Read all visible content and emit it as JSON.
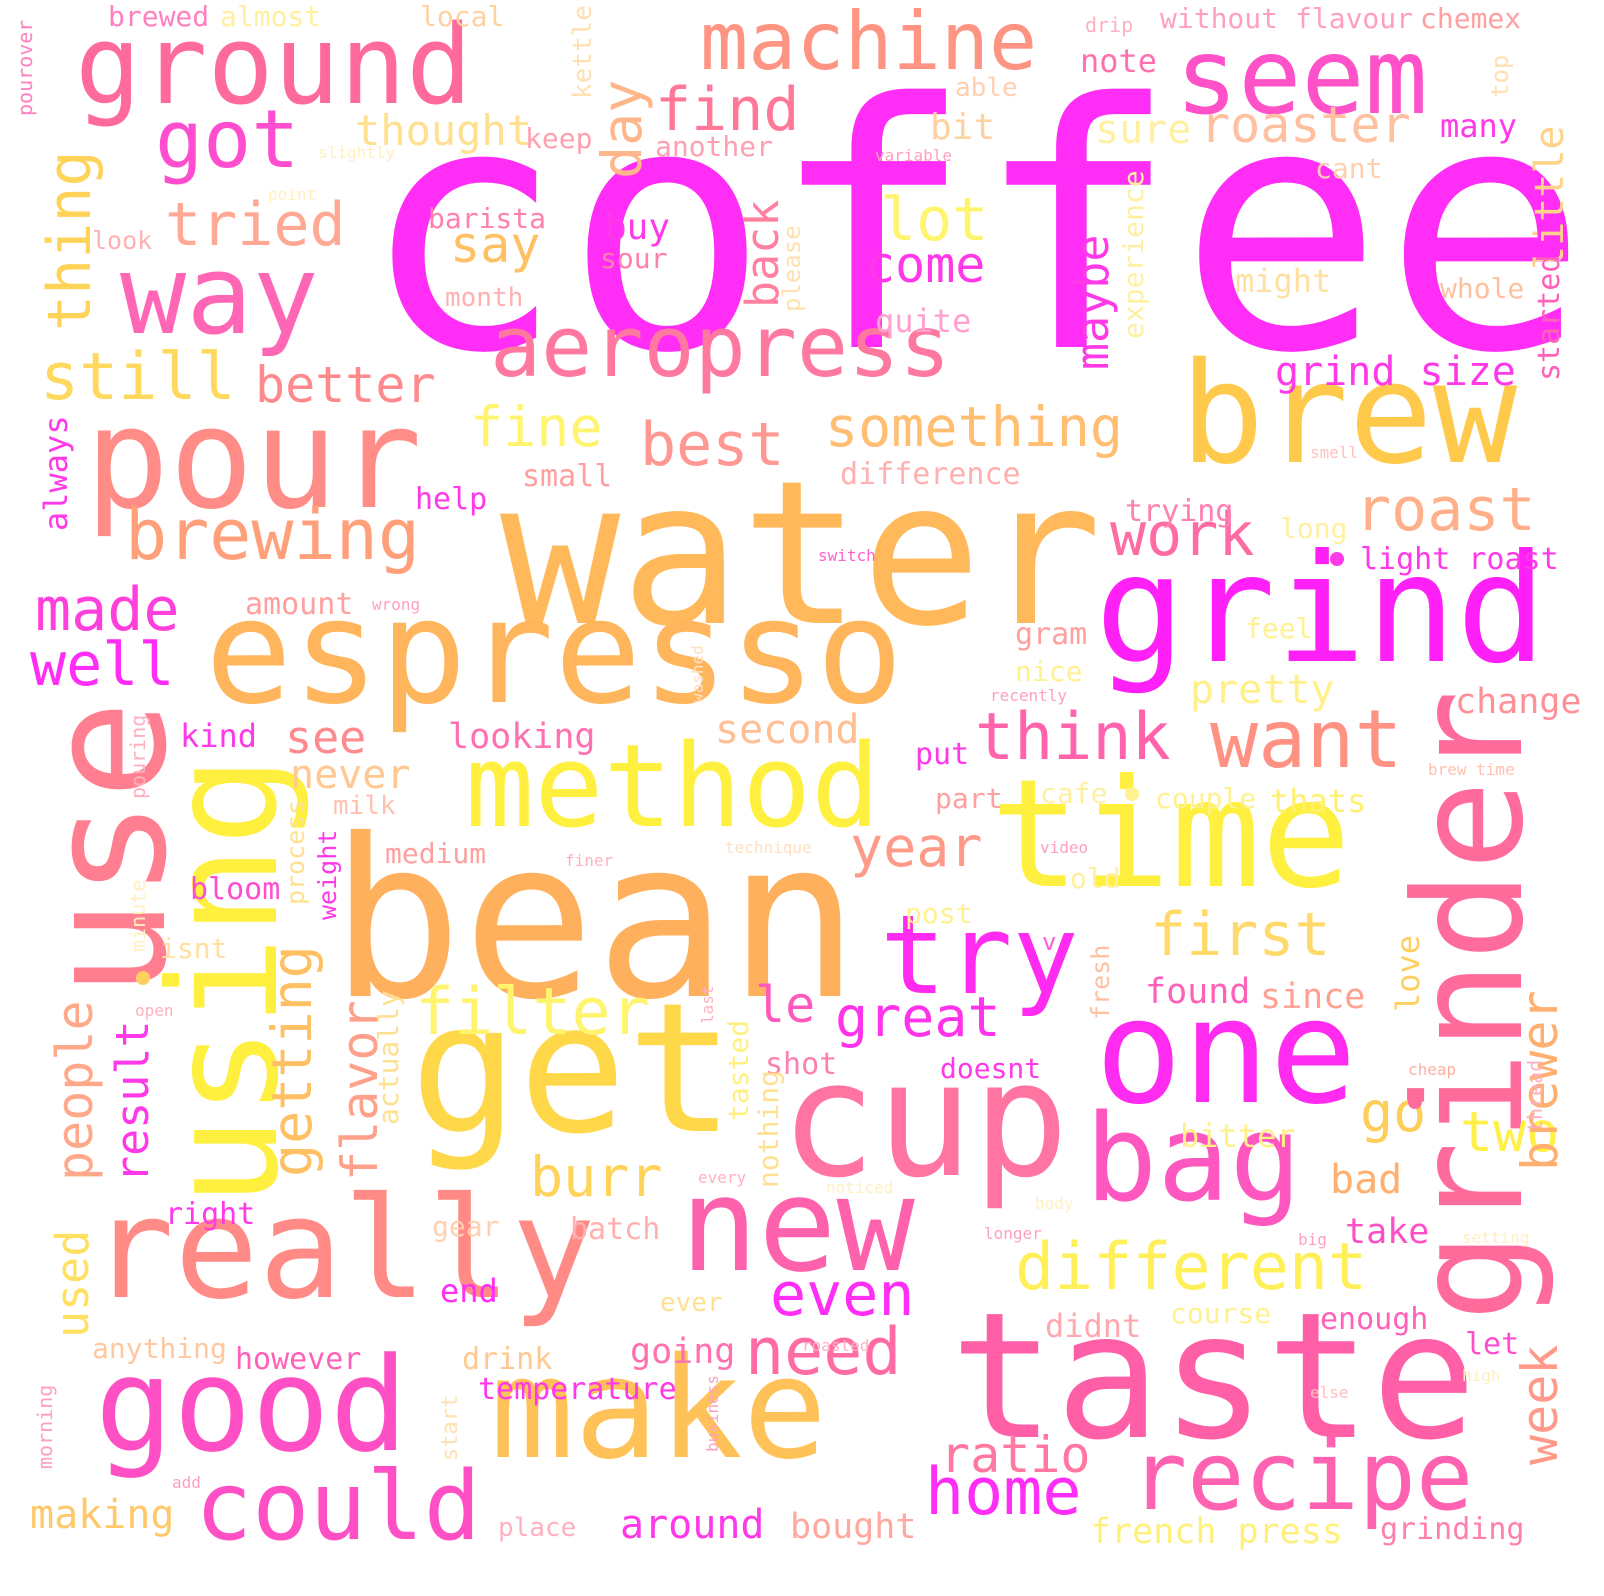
{
  "palette": {
    "magenta": "#ff2df6",
    "pink": "#ff4fb2",
    "rose": "#ff6f97",
    "salmon": "#ff8f82",
    "orange": "#ffaf63",
    "gold": "#ffc74f",
    "yellow": "#fff23a"
  },
  "words": [
    {
      "text": "coffee",
      "color": "#ff2df6"
    },
    {
      "text": "water",
      "color": "#ffb95a"
    },
    {
      "text": "bean",
      "color": "#ffb05d"
    },
    {
      "text": "espresso",
      "color": "#ffb55c"
    },
    {
      "text": "taste",
      "color": "#ff5fa7"
    },
    {
      "text": "use",
      "color": "#ff7f90"
    },
    {
      "text": "time",
      "color": "#fff03f"
    },
    {
      "text": "brew",
      "color": "#ffca4c"
    },
    {
      "text": "grind",
      "color": "#ff1ff7"
    },
    {
      "text": "get",
      "color": "#ffd84a"
    },
    {
      "text": "cup",
      "color": "#ff74a0"
    },
    {
      "text": "one",
      "color": "#ff2bf0"
    },
    {
      "text": "grinder",
      "color": "#ff6c9c"
    },
    {
      "text": "really",
      "color": "#ff8a86"
    },
    {
      "text": "using",
      "color": "#fff040"
    },
    {
      "text": "pour",
      "color": "#ff8c86"
    },
    {
      "text": "make",
      "color": "#ffc258"
    },
    {
      "text": "ground",
      "color": "#ff6a9e"
    },
    {
      "text": "seem",
      "color": "#ff52c8"
    },
    {
      "text": "machine",
      "color": "#ff9483"
    },
    {
      "text": "good",
      "color": "#ff4fc4"
    },
    {
      "text": "aeropress",
      "color": "#ff78a0"
    },
    {
      "text": "way",
      "color": "#ff66b6"
    },
    {
      "text": "new",
      "color": "#ff62ac"
    },
    {
      "text": "method",
      "color": "#fff040"
    },
    {
      "text": "bag",
      "color": "#ff57c0"
    },
    {
      "text": "recipe",
      "color": "#ff62b0"
    },
    {
      "text": "could",
      "color": "#ff4fc4"
    },
    {
      "text": "try",
      "color": "#ff2bf0"
    },
    {
      "text": "want",
      "color": "#ff9283"
    },
    {
      "text": "brewing",
      "color": "#ffa07a"
    },
    {
      "text": "think",
      "color": "#ff63ac"
    },
    {
      "text": "got",
      "color": "#ff4dd0"
    },
    {
      "text": "find",
      "color": "#ff7898"
    },
    {
      "text": "roaster",
      "color": "#ffc0a0"
    },
    {
      "text": "different",
      "color": "#fff05a"
    },
    {
      "text": "filter",
      "color": "#fff46e"
    },
    {
      "text": "first",
      "color": "#ffd96a"
    },
    {
      "text": "home",
      "color": "#ff2df6"
    },
    {
      "text": "need",
      "color": "#ff6ca4"
    },
    {
      "text": "ratio",
      "color": "#ff78a0"
    },
    {
      "text": "something",
      "color": "#ffbe72"
    },
    {
      "text": "roast",
      "color": "#ffb08a"
    },
    {
      "text": "year",
      "color": "#ff9a88"
    },
    {
      "text": "made",
      "color": "#ff3fdc"
    },
    {
      "text": "well",
      "color": "#ff2df6"
    },
    {
      "text": "day",
      "color": "#ffb68a"
    },
    {
      "text": "still",
      "color": "#ffd860"
    },
    {
      "text": "thing",
      "color": "#ffd258"
    },
    {
      "text": "tried",
      "color": "#ffa893"
    },
    {
      "text": "best",
      "color": "#ff9893"
    },
    {
      "text": "fine",
      "color": "#fff46e"
    },
    {
      "text": "better",
      "color": "#ff8a8e"
    },
    {
      "text": "lot",
      "color": "#fff46e"
    },
    {
      "text": "say",
      "color": "#ffc064"
    },
    {
      "text": "come",
      "color": "#ff38e8"
    },
    {
      "text": "work",
      "color": "#ff6ca4"
    },
    {
      "text": "great",
      "color": "#ff33ec"
    },
    {
      "text": "le",
      "color": "#ff58bc"
    },
    {
      "text": "even",
      "color": "#ff2df6"
    },
    {
      "text": "burr",
      "color": "#ffd258"
    },
    {
      "text": "go",
      "color": "#ffce58"
    },
    {
      "text": "two",
      "color": "#fff046"
    },
    {
      "text": "bad",
      "color": "#ffb070"
    },
    {
      "text": "take",
      "color": "#ff4fc4"
    },
    {
      "text": "week",
      "color": "#ff9a8a"
    },
    {
      "text": "brewer",
      "color": "#ffb070"
    },
    {
      "text": "back",
      "color": "#ff80a0"
    },
    {
      "text": "maybe",
      "color": "#ff38e8"
    },
    {
      "text": "little",
      "color": "#ffd28a"
    },
    {
      "text": "see",
      "color": "#ff8a8e"
    },
    {
      "text": "pretty",
      "color": "#fff08a"
    },
    {
      "text": "second",
      "color": "#ffbe94"
    },
    {
      "text": "never",
      "color": "#ffc890"
    },
    {
      "text": "getting",
      "color": "#ffc064"
    },
    {
      "text": "flavor",
      "color": "#ffa08a"
    },
    {
      "text": "people",
      "color": "#ffa88a"
    },
    {
      "text": "result",
      "color": "#ff38e8"
    },
    {
      "text": "used",
      "color": "#ffe060"
    },
    {
      "text": "grind size",
      "color": "#ff38e8"
    },
    {
      "text": "light roast",
      "color": "#ff38e8"
    },
    {
      "text": "change",
      "color": "#ff9098"
    },
    {
      "text": "french press",
      "color": "#fff07a"
    },
    {
      "text": "grinding",
      "color": "#ff80b0"
    },
    {
      "text": "making",
      "color": "#ffc86a"
    },
    {
      "text": "around",
      "color": "#ff38e8"
    },
    {
      "text": "bought",
      "color": "#ffa8a0"
    },
    {
      "text": "temperature",
      "color": "#ff38e8"
    },
    {
      "text": "drink",
      "color": "#ffc890"
    },
    {
      "text": "however",
      "color": "#ff60b8"
    },
    {
      "text": "going",
      "color": "#ff70b0"
    },
    {
      "text": "anything",
      "color": "#ffc8a0"
    },
    {
      "text": "didnt",
      "color": "#ffa8b0"
    },
    {
      "text": "course",
      "color": "#fff090"
    },
    {
      "text": "enough",
      "color": "#ff60b8"
    },
    {
      "text": "let",
      "color": "#ff4dd0"
    },
    {
      "text": "bitter",
      "color": "#fff08a"
    },
    {
      "text": "found",
      "color": "#ff60b8"
    },
    {
      "text": "since",
      "color": "#ffa090"
    },
    {
      "text": "love",
      "color": "#ffd060"
    },
    {
      "text": "doesnt",
      "color": "#ff38e8"
    },
    {
      "text": "shot",
      "color": "#ff80b0"
    },
    {
      "text": "tasted",
      "color": "#fff080"
    },
    {
      "text": "nothing",
      "color": "#ffe090"
    },
    {
      "text": "actually",
      "color": "#ffe090"
    },
    {
      "text": "right",
      "color": "#ff38e8"
    },
    {
      "text": "gear",
      "color": "#ffd0b0"
    },
    {
      "text": "batch",
      "color": "#ffb0b0"
    },
    {
      "text": "end",
      "color": "#ff2df6"
    },
    {
      "text": "ever",
      "color": "#ffe090"
    },
    {
      "text": "post",
      "color": "#fff090"
    },
    {
      "text": "isnt",
      "color": "#ffe0a0"
    },
    {
      "text": "bloom",
      "color": "#ff4dd0"
    },
    {
      "text": "process",
      "color": "#ffe090"
    },
    {
      "text": "weight",
      "color": "#ff38e8"
    },
    {
      "text": "medium",
      "color": "#ffa0a0"
    },
    {
      "text": "milk",
      "color": "#ffc0b0"
    },
    {
      "text": "part",
      "color": "#ffa0a0"
    },
    {
      "text": "put",
      "color": "#ff38e8"
    },
    {
      "text": "cafe",
      "color": "#fff0a0"
    },
    {
      "text": "couple",
      "color": "#fff090"
    },
    {
      "text": "thats",
      "color": "#fff070"
    },
    {
      "text": "old",
      "color": "#fff0a0"
    },
    {
      "text": "fresh",
      "color": "#ffc0a0"
    },
    {
      "text": "kind",
      "color": "#ff38e8"
    },
    {
      "text": "looking",
      "color": "#ff70b0"
    },
    {
      "text": "amount",
      "color": "#ffa0a0"
    },
    {
      "text": "help",
      "color": "#ff38e8"
    },
    {
      "text": "small",
      "color": "#ffa0a0"
    },
    {
      "text": "difference",
      "color": "#ffb0b0"
    },
    {
      "text": "trying",
      "color": "#ff80b0"
    },
    {
      "text": "long",
      "color": "#fff0a0"
    },
    {
      "text": "gram",
      "color": "#ffa0a0"
    },
    {
      "text": "nice",
      "color": "#fff090"
    },
    {
      "text": "feel",
      "color": "#fff090"
    },
    {
      "text": "quite",
      "color": "#ffa0d0"
    },
    {
      "text": "month",
      "color": "#ffb0b0"
    },
    {
      "text": "please",
      "color": "#ffe0b0"
    },
    {
      "text": "experience",
      "color": "#fff0a0"
    },
    {
      "text": "might",
      "color": "#ffe0a0"
    },
    {
      "text": "whole",
      "color": "#ffc0a0"
    },
    {
      "text": "started",
      "color": "#ff60b8"
    },
    {
      "text": "buy",
      "color": "#ff38e8"
    },
    {
      "text": "sour",
      "color": "#ff80b0"
    },
    {
      "text": "barista",
      "color": "#ff80b0"
    },
    {
      "text": "look",
      "color": "#ffb0b0"
    },
    {
      "text": "thought",
      "color": "#ffe090"
    },
    {
      "text": "keep",
      "color": "#ffa0b0"
    },
    {
      "text": "another",
      "color": "#ffa0b0"
    },
    {
      "text": "bit",
      "color": "#ffd0a0"
    },
    {
      "text": "able",
      "color": "#ffd0b0"
    },
    {
      "text": "note",
      "color": "#ff70b0"
    },
    {
      "text": "sure",
      "color": "#fff0a0"
    },
    {
      "text": "many",
      "color": "#ff38e8"
    },
    {
      "text": "cant",
      "color": "#ffd0b0"
    },
    {
      "text": "top",
      "color": "#ffe0b0"
    },
    {
      "text": "kettle",
      "color": "#ffe0b0"
    },
    {
      "text": "local",
      "color": "#ffd0a0"
    },
    {
      "text": "almost",
      "color": "#fff0a0"
    },
    {
      "text": "brewed",
      "color": "#ff80c0"
    },
    {
      "text": "drip",
      "color": "#ffb0c0"
    },
    {
      "text": "without",
      "color": "#ffa0c0"
    },
    {
      "text": "flavour",
      "color": "#ffa0c0"
    },
    {
      "text": "chemex",
      "color": "#ffa0a0"
    },
    {
      "text": "pourover",
      "color": "#ff80c0"
    },
    {
      "text": "slightly",
      "color": "#fff0c0"
    },
    {
      "text": "point",
      "color": "#fff0c0"
    },
    {
      "text": "variable",
      "color": "#ffa0c0"
    },
    {
      "text": "smell",
      "color": "#ffc0c0"
    },
    {
      "text": "switch",
      "color": "#ff60d0"
    },
    {
      "text": "wrong",
      "color": "#ffa0c0"
    },
    {
      "text": "recently",
      "color": "#ffa0c0"
    },
    {
      "text": "washed",
      "color": "#ffe0c0"
    },
    {
      "text": "brew time",
      "color": "#ffc0b0"
    },
    {
      "text": "technique",
      "color": "#ffe0c0"
    },
    {
      "text": "video",
      "color": "#ffa0c0"
    },
    {
      "text": "finer",
      "color": "#ffb0c0"
    },
    {
      "text": "v",
      "color": "#ff60d0"
    },
    {
      "text": "pouring",
      "color": "#ffb0c0"
    },
    {
      "text": "minute",
      "color": "#fff0c0"
    },
    {
      "text": "open",
      "color": "#ffb0c0"
    },
    {
      "text": "last",
      "color": "#ffb0c0"
    },
    {
      "text": "cheap",
      "color": "#ffb0a0"
    },
    {
      "text": "thread",
      "color": "#ffb0c0"
    },
    {
      "text": "every",
      "color": "#ffb0c0"
    },
    {
      "text": "noticed",
      "color": "#fff0c0"
    },
    {
      "text": "body",
      "color": "#fff0c0"
    },
    {
      "text": "longer",
      "color": "#ffa0c0"
    },
    {
      "text": "big",
      "color": "#ffa0c0"
    },
    {
      "text": "setting",
      "color": "#fff0c0"
    },
    {
      "text": "roasted",
      "color": "#ffb0c0"
    },
    {
      "text": "high",
      "color": "#fff0c0"
    },
    {
      "text": "else",
      "color": "#ffc0c0"
    },
    {
      "text": "business",
      "color": "#ffa0c0"
    },
    {
      "text": "start",
      "color": "#ffe0b0"
    },
    {
      "text": "morning",
      "color": "#ffa0c0"
    },
    {
      "text": "add",
      "color": "#ffa0c0"
    },
    {
      "text": "place",
      "color": "#ffb0c0"
    },
    {
      "text": "always",
      "color": "#ff38e8"
    }
  ]
}
